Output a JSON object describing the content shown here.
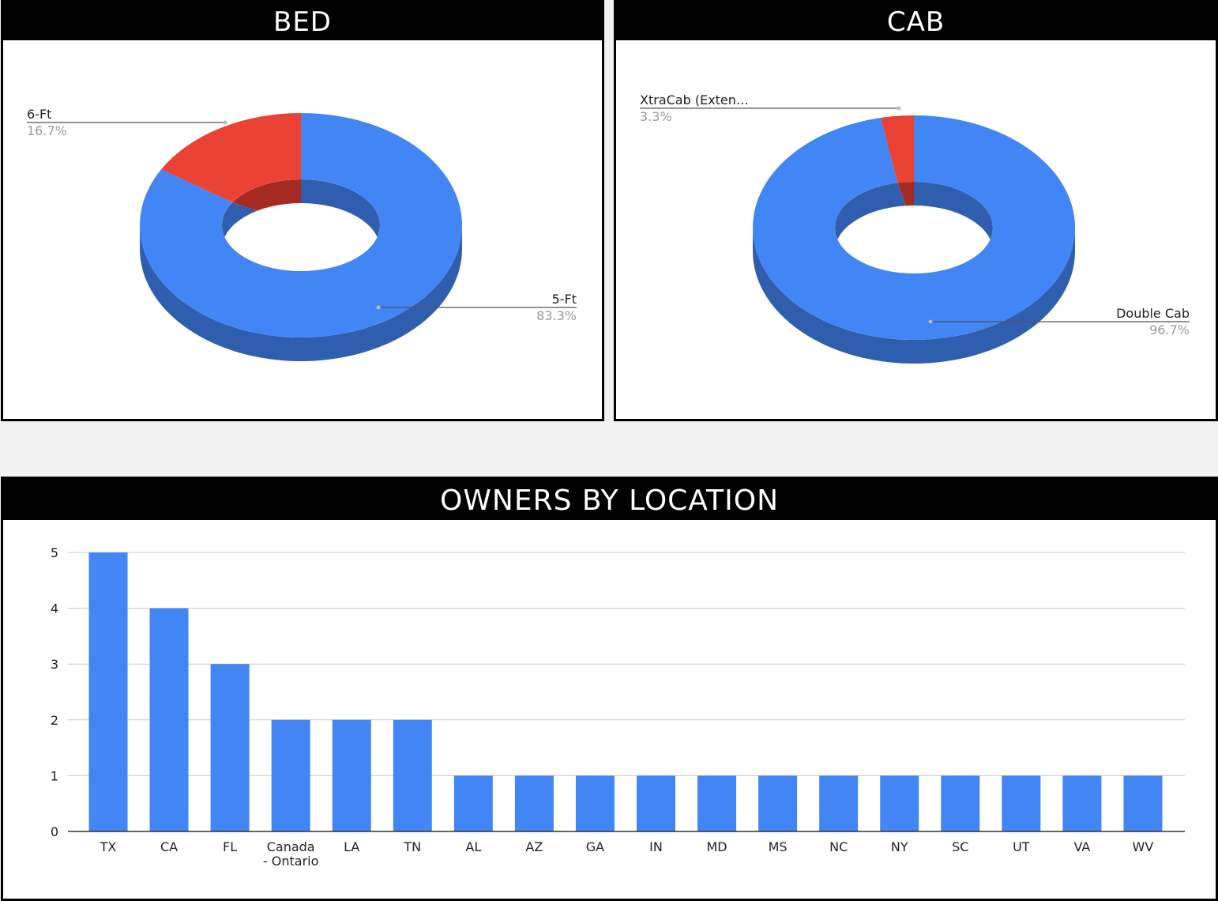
{
  "colors": {
    "primary": "#4285f4",
    "primary_side": "#2f5eae",
    "secondary": "#ea4335",
    "secondary_side": "#a52b22",
    "header_bg": "#000000",
    "header_text": "#ffffff",
    "gridline": "#cccccc",
    "leader": "#555555",
    "pct_text": "#999999"
  },
  "bed": {
    "title": "BED",
    "chart_data": {
      "type": "pie",
      "style": "3d-donut",
      "slices": [
        {
          "label": "5-Ft",
          "value": 83.3,
          "pct": "83.3%"
        },
        {
          "label": "6-Ft",
          "value": 16.7,
          "pct": "16.7%"
        }
      ]
    }
  },
  "cab": {
    "title": "CAB",
    "chart_data": {
      "type": "pie",
      "style": "3d-donut",
      "slices": [
        {
          "label": "Double Cab",
          "value": 96.7,
          "pct": "96.7%"
        },
        {
          "label": "XtraCab (Exten…",
          "value": 3.3,
          "pct": "3.3%"
        }
      ]
    }
  },
  "location": {
    "title": "OWNERS BY LOCATION",
    "chart_data": {
      "type": "bar",
      "categories": [
        "TX",
        "CA",
        "FL",
        "Canada - Ontario",
        "LA",
        "TN",
        "AL",
        "AZ",
        "GA",
        "IN",
        "MD",
        "MS",
        "NC",
        "NY",
        "SC",
        "UT",
        "VA",
        "WV"
      ],
      "category_label_lines": [
        [
          "TX"
        ],
        [
          "CA"
        ],
        [
          "FL"
        ],
        [
          "Canada",
          "- Ontario"
        ],
        [
          "LA"
        ],
        [
          "TN"
        ],
        [
          "AL"
        ],
        [
          "AZ"
        ],
        [
          "GA"
        ],
        [
          "IN"
        ],
        [
          "MD"
        ],
        [
          "MS"
        ],
        [
          "NC"
        ],
        [
          "NY"
        ],
        [
          "SC"
        ],
        [
          "UT"
        ],
        [
          "VA"
        ],
        [
          "WV"
        ]
      ],
      "values": [
        5,
        4,
        3,
        2,
        2,
        2,
        1,
        1,
        1,
        1,
        1,
        1,
        1,
        1,
        1,
        1,
        1,
        1
      ],
      "yticks": [
        0,
        1,
        2,
        3,
        4,
        5
      ],
      "ylim": [
        0,
        5
      ],
      "grid": true,
      "legend": "none"
    }
  }
}
